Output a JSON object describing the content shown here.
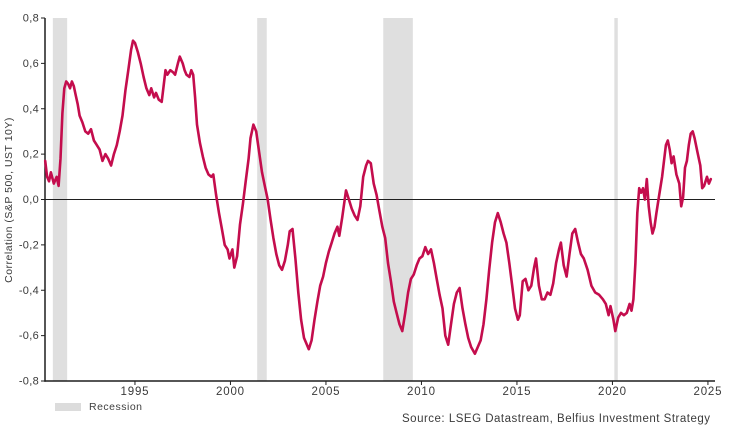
{
  "chart_data": {
    "type": "line",
    "title": "",
    "xlabel": "",
    "ylabel": "Correlation (S&P 500, UST 10Y)",
    "xlim": [
      1990.29,
      2025.37
    ],
    "ylim": [
      -0.8,
      0.8
    ],
    "grid": false,
    "zero_line": true,
    "x_ticks": [
      1995,
      2000,
      2005,
      2010,
      2015,
      2020,
      2025
    ],
    "x_tick_labels": [
      "1995",
      "2000",
      "2005",
      "2010",
      "2015",
      "2020",
      "2025"
    ],
    "y_ticks": [
      0.8,
      0.6,
      0.4,
      0.2,
      0.0,
      -0.2,
      -0.4,
      -0.6,
      -0.8
    ],
    "y_tick_labels": [
      "0,8",
      "0,6",
      "0,4",
      "0,2",
      "0,0",
      "-0,2",
      "-0,4",
      "-0,6",
      "-0,8"
    ],
    "recession_bands": [
      [
        1990.7,
        1991.45
      ],
      [
        2001.4,
        2001.9
      ],
      [
        2008.0,
        2009.55
      ],
      [
        2020.1,
        2020.28
      ]
    ],
    "recession_color": "#dfdfdf",
    "legend": [
      {
        "label": "Recession",
        "swatch_color": "#dcdcdc"
      }
    ],
    "legend_position": "bottom-left",
    "source_note": "Source: LSEG Datastream, Belfius Investment Strategy",
    "series": [
      {
        "name": "Correlation (S&P 500, UST 10Y)",
        "color": "#c40d4d",
        "points": [
          [
            1990.3,
            0.17
          ],
          [
            1990.4,
            0.1
          ],
          [
            1990.5,
            0.08
          ],
          [
            1990.6,
            0.12
          ],
          [
            1990.75,
            0.07
          ],
          [
            1990.9,
            0.1
          ],
          [
            1991.0,
            0.06
          ],
          [
            1991.1,
            0.18
          ],
          [
            1991.2,
            0.38
          ],
          [
            1991.3,
            0.49
          ],
          [
            1991.4,
            0.52
          ],
          [
            1991.5,
            0.51
          ],
          [
            1991.6,
            0.49
          ],
          [
            1991.7,
            0.52
          ],
          [
            1991.8,
            0.5
          ],
          [
            1991.9,
            0.46
          ],
          [
            1992.0,
            0.42
          ],
          [
            1992.1,
            0.37
          ],
          [
            1992.25,
            0.34
          ],
          [
            1992.4,
            0.3
          ],
          [
            1992.55,
            0.29
          ],
          [
            1992.7,
            0.31
          ],
          [
            1992.85,
            0.26
          ],
          [
            1993.0,
            0.24
          ],
          [
            1993.15,
            0.22
          ],
          [
            1993.3,
            0.17
          ],
          [
            1993.45,
            0.2
          ],
          [
            1993.6,
            0.18
          ],
          [
            1993.75,
            0.15
          ],
          [
            1993.9,
            0.2
          ],
          [
            1994.05,
            0.24
          ],
          [
            1994.2,
            0.3
          ],
          [
            1994.35,
            0.37
          ],
          [
            1994.5,
            0.48
          ],
          [
            1994.65,
            0.57
          ],
          [
            1994.8,
            0.66
          ],
          [
            1994.9,
            0.7
          ],
          [
            1995.0,
            0.69
          ],
          [
            1995.15,
            0.65
          ],
          [
            1995.3,
            0.6
          ],
          [
            1995.45,
            0.54
          ],
          [
            1995.6,
            0.49
          ],
          [
            1995.75,
            0.46
          ],
          [
            1995.85,
            0.49
          ],
          [
            1996.0,
            0.45
          ],
          [
            1996.1,
            0.47
          ],
          [
            1996.25,
            0.44
          ],
          [
            1996.4,
            0.43
          ],
          [
            1996.5,
            0.5
          ],
          [
            1996.6,
            0.57
          ],
          [
            1996.7,
            0.55
          ],
          [
            1996.85,
            0.57
          ],
          [
            1997.0,
            0.56
          ],
          [
            1997.1,
            0.55
          ],
          [
            1997.25,
            0.6
          ],
          [
            1997.35,
            0.63
          ],
          [
            1997.5,
            0.6
          ],
          [
            1997.6,
            0.57
          ],
          [
            1997.7,
            0.55
          ],
          [
            1997.85,
            0.54
          ],
          [
            1997.95,
            0.57
          ],
          [
            1998.05,
            0.55
          ],
          [
            1998.15,
            0.45
          ],
          [
            1998.25,
            0.33
          ],
          [
            1998.4,
            0.25
          ],
          [
            1998.55,
            0.19
          ],
          [
            1998.7,
            0.14
          ],
          [
            1998.85,
            0.11
          ],
          [
            1999.0,
            0.1
          ],
          [
            1999.1,
            0.11
          ],
          [
            1999.25,
            0.02
          ],
          [
            1999.4,
            -0.06
          ],
          [
            1999.55,
            -0.13
          ],
          [
            1999.7,
            -0.2
          ],
          [
            1999.85,
            -0.22
          ],
          [
            1999.95,
            -0.26
          ],
          [
            2000.1,
            -0.22
          ],
          [
            2000.2,
            -0.3
          ],
          [
            2000.35,
            -0.25
          ],
          [
            2000.5,
            -0.11
          ],
          [
            2000.65,
            -0.02
          ],
          [
            2000.8,
            0.08
          ],
          [
            2000.95,
            0.18
          ],
          [
            2001.05,
            0.27
          ],
          [
            2001.2,
            0.33
          ],
          [
            2001.35,
            0.3
          ],
          [
            2001.5,
            0.21
          ],
          [
            2001.65,
            0.12
          ],
          [
            2001.8,
            0.06
          ],
          [
            2001.95,
            0.0
          ],
          [
            2002.1,
            -0.09
          ],
          [
            2002.25,
            -0.17
          ],
          [
            2002.4,
            -0.24
          ],
          [
            2002.55,
            -0.29
          ],
          [
            2002.7,
            -0.31
          ],
          [
            2002.85,
            -0.27
          ],
          [
            2003.0,
            -0.2
          ],
          [
            2003.1,
            -0.14
          ],
          [
            2003.25,
            -0.13
          ],
          [
            2003.4,
            -0.26
          ],
          [
            2003.55,
            -0.41
          ],
          [
            2003.7,
            -0.53
          ],
          [
            2003.85,
            -0.61
          ],
          [
            2004.0,
            -0.64
          ],
          [
            2004.1,
            -0.66
          ],
          [
            2004.25,
            -0.62
          ],
          [
            2004.4,
            -0.53
          ],
          [
            2004.55,
            -0.45
          ],
          [
            2004.7,
            -0.38
          ],
          [
            2004.85,
            -0.34
          ],
          [
            2005.0,
            -0.28
          ],
          [
            2005.15,
            -0.23
          ],
          [
            2005.3,
            -0.19
          ],
          [
            2005.45,
            -0.15
          ],
          [
            2005.6,
            -0.12
          ],
          [
            2005.7,
            -0.16
          ],
          [
            2005.85,
            -0.08
          ],
          [
            2005.95,
            -0.02
          ],
          [
            2006.05,
            0.04
          ],
          [
            2006.2,
            0.0
          ],
          [
            2006.35,
            -0.04
          ],
          [
            2006.5,
            -0.07
          ],
          [
            2006.65,
            -0.09
          ],
          [
            2006.8,
            -0.03
          ],
          [
            2006.95,
            0.1
          ],
          [
            2007.1,
            0.15
          ],
          [
            2007.2,
            0.17
          ],
          [
            2007.35,
            0.16
          ],
          [
            2007.5,
            0.07
          ],
          [
            2007.65,
            0.02
          ],
          [
            2007.8,
            -0.05
          ],
          [
            2007.95,
            -0.12
          ],
          [
            2008.1,
            -0.17
          ],
          [
            2008.25,
            -0.28
          ],
          [
            2008.4,
            -0.36
          ],
          [
            2008.55,
            -0.45
          ],
          [
            2008.7,
            -0.5
          ],
          [
            2008.85,
            -0.55
          ],
          [
            2009.0,
            -0.58
          ],
          [
            2009.15,
            -0.5
          ],
          [
            2009.3,
            -0.41
          ],
          [
            2009.45,
            -0.35
          ],
          [
            2009.6,
            -0.33
          ],
          [
            2009.75,
            -0.29
          ],
          [
            2009.9,
            -0.26
          ],
          [
            2010.05,
            -0.25
          ],
          [
            2010.2,
            -0.21
          ],
          [
            2010.35,
            -0.24
          ],
          [
            2010.5,
            -0.22
          ],
          [
            2010.65,
            -0.28
          ],
          [
            2010.8,
            -0.35
          ],
          [
            2010.95,
            -0.42
          ],
          [
            2011.1,
            -0.48
          ],
          [
            2011.25,
            -0.6
          ],
          [
            2011.4,
            -0.64
          ],
          [
            2011.55,
            -0.55
          ],
          [
            2011.7,
            -0.46
          ],
          [
            2011.85,
            -0.41
          ],
          [
            2012.0,
            -0.39
          ],
          [
            2012.15,
            -0.48
          ],
          [
            2012.3,
            -0.55
          ],
          [
            2012.45,
            -0.61
          ],
          [
            2012.6,
            -0.65
          ],
          [
            2012.8,
            -0.68
          ],
          [
            2012.95,
            -0.65
          ],
          [
            2013.1,
            -0.62
          ],
          [
            2013.25,
            -0.55
          ],
          [
            2013.4,
            -0.44
          ],
          [
            2013.55,
            -0.31
          ],
          [
            2013.7,
            -0.19
          ],
          [
            2013.85,
            -0.1
          ],
          [
            2014.0,
            -0.06
          ],
          [
            2014.15,
            -0.1
          ],
          [
            2014.3,
            -0.15
          ],
          [
            2014.45,
            -0.19
          ],
          [
            2014.6,
            -0.28
          ],
          [
            2014.75,
            -0.38
          ],
          [
            2014.9,
            -0.48
          ],
          [
            2015.05,
            -0.53
          ],
          [
            2015.15,
            -0.51
          ],
          [
            2015.3,
            -0.36
          ],
          [
            2015.45,
            -0.35
          ],
          [
            2015.6,
            -0.4
          ],
          [
            2015.75,
            -0.38
          ],
          [
            2015.9,
            -0.3
          ],
          [
            2016.0,
            -0.26
          ],
          [
            2016.15,
            -0.38
          ],
          [
            2016.3,
            -0.44
          ],
          [
            2016.45,
            -0.44
          ],
          [
            2016.6,
            -0.41
          ],
          [
            2016.75,
            -0.42
          ],
          [
            2016.9,
            -0.37
          ],
          [
            2017.05,
            -0.28
          ],
          [
            2017.2,
            -0.22
          ],
          [
            2017.3,
            -0.19
          ],
          [
            2017.45,
            -0.29
          ],
          [
            2017.6,
            -0.34
          ],
          [
            2017.75,
            -0.24
          ],
          [
            2017.9,
            -0.15
          ],
          [
            2018.05,
            -0.13
          ],
          [
            2018.2,
            -0.19
          ],
          [
            2018.35,
            -0.24
          ],
          [
            2018.5,
            -0.26
          ],
          [
            2018.7,
            -0.31
          ],
          [
            2018.9,
            -0.38
          ],
          [
            2019.1,
            -0.41
          ],
          [
            2019.3,
            -0.42
          ],
          [
            2019.5,
            -0.44
          ],
          [
            2019.65,
            -0.46
          ],
          [
            2019.8,
            -0.51
          ],
          [
            2019.9,
            -0.47
          ],
          [
            2020.05,
            -0.53
          ],
          [
            2020.15,
            -0.58
          ],
          [
            2020.3,
            -0.52
          ],
          [
            2020.45,
            -0.5
          ],
          [
            2020.6,
            -0.51
          ],
          [
            2020.75,
            -0.5
          ],
          [
            2020.9,
            -0.46
          ],
          [
            2021.0,
            -0.49
          ],
          [
            2021.1,
            -0.44
          ],
          [
            2021.2,
            -0.28
          ],
          [
            2021.3,
            -0.06
          ],
          [
            2021.4,
            0.05
          ],
          [
            2021.5,
            0.03
          ],
          [
            2021.6,
            0.05
          ],
          [
            2021.7,
            0.0
          ],
          [
            2021.8,
            0.09
          ],
          [
            2021.9,
            -0.03
          ],
          [
            2022.0,
            -0.1
          ],
          [
            2022.1,
            -0.15
          ],
          [
            2022.2,
            -0.12
          ],
          [
            2022.3,
            -0.06
          ],
          [
            2022.45,
            0.02
          ],
          [
            2022.6,
            0.1
          ],
          [
            2022.7,
            0.17
          ],
          [
            2022.8,
            0.24
          ],
          [
            2022.9,
            0.26
          ],
          [
            2023.0,
            0.22
          ],
          [
            2023.1,
            0.16
          ],
          [
            2023.2,
            0.19
          ],
          [
            2023.35,
            0.11
          ],
          [
            2023.5,
            0.07
          ],
          [
            2023.6,
            -0.03
          ],
          [
            2023.7,
            0.01
          ],
          [
            2023.8,
            0.14
          ],
          [
            2023.9,
            0.17
          ],
          [
            2024.0,
            0.24
          ],
          [
            2024.1,
            0.29
          ],
          [
            2024.2,
            0.3
          ],
          [
            2024.3,
            0.27
          ],
          [
            2024.45,
            0.21
          ],
          [
            2024.6,
            0.15
          ],
          [
            2024.7,
            0.05
          ],
          [
            2024.8,
            0.06
          ],
          [
            2024.95,
            0.1
          ],
          [
            2025.05,
            0.07
          ],
          [
            2025.15,
            0.09
          ]
        ]
      }
    ],
    "colors": {
      "axis": "#1f1f1f",
      "zero_line": "#1f1f1f",
      "tick_text": "#3a3a3a"
    }
  }
}
